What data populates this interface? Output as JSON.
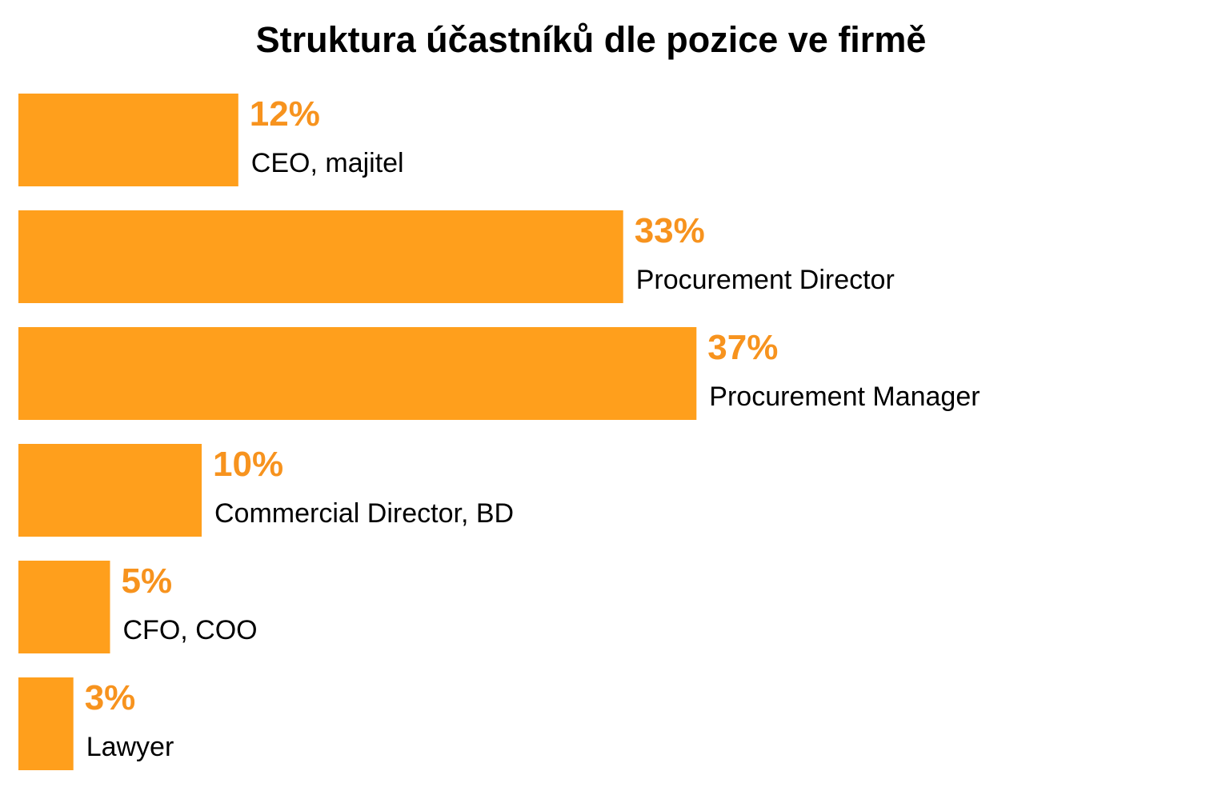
{
  "chart_data": {
    "type": "bar",
    "orientation": "horizontal",
    "title": "Struktura účastníků dle pozice ve firmě",
    "categories": [
      "CEO, majitel",
      "Procurement Director",
      "Procurement Manager",
      "Commercial Director, BD",
      "CFO, COO",
      "Lawyer"
    ],
    "values": [
      12,
      33,
      37,
      10,
      5,
      3
    ],
    "value_labels": [
      "12%",
      "33%",
      "37%",
      "10%",
      "5%",
      "3%"
    ],
    "unit": "%",
    "bar_color": "#FF9F1C",
    "label_color": "#F7931E",
    "grid": false,
    "legend": "none"
  }
}
